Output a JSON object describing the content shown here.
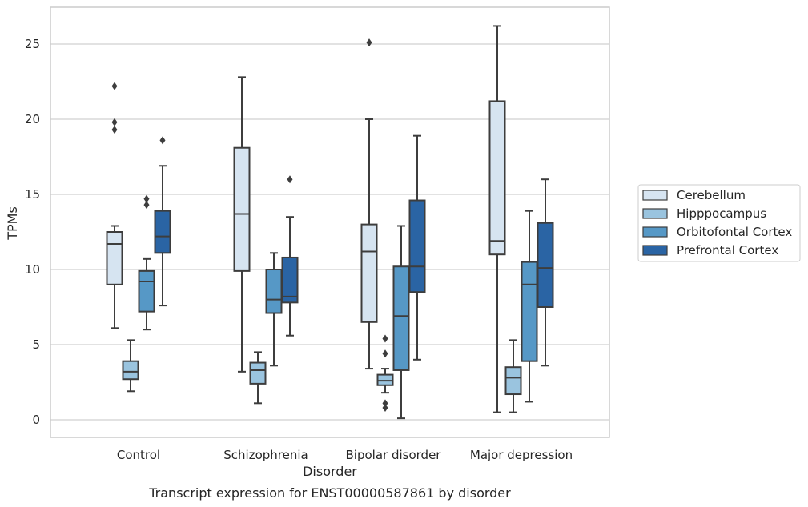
{
  "chart_data": {
    "type": "box",
    "title": "",
    "caption": "Transcript expression for ENST00000587861 by disorder",
    "xlabel": "Disorder",
    "ylabel": "TPMs",
    "ylim": [
      -1.2,
      27.4
    ],
    "yticks": [
      0,
      5,
      10,
      15,
      20,
      25
    ],
    "grid": true,
    "legend_position": "right",
    "categories": [
      "Control",
      "Schizophrenia",
      "Bipolar disorder",
      "Major depression"
    ],
    "series": [
      {
        "name": "Cerebellum",
        "color": "#d6e4f1",
        "boxes": [
          {
            "whisker_low": 6.1,
            "q1": 9.0,
            "median": 11.7,
            "q3": 12.5,
            "whisker_high": 12.9,
            "outliers": [
              22.2,
              19.8,
              19.3
            ]
          },
          {
            "whisker_low": 3.2,
            "q1": 9.9,
            "median": 13.7,
            "q3": 18.1,
            "whisker_high": 22.8,
            "outliers": []
          },
          {
            "whisker_low": 3.4,
            "q1": 6.5,
            "median": 11.2,
            "q3": 13.0,
            "whisker_high": 20.0,
            "outliers": [
              25.1
            ]
          },
          {
            "whisker_low": 0.5,
            "q1": 11.0,
            "median": 11.9,
            "q3": 21.2,
            "whisker_high": 26.2,
            "outliers": []
          }
        ]
      },
      {
        "name": "Hipppocampus",
        "color": "#9ac4df",
        "boxes": [
          {
            "whisker_low": 1.9,
            "q1": 2.7,
            "median": 3.2,
            "q3": 3.9,
            "whisker_high": 5.3,
            "outliers": []
          },
          {
            "whisker_low": 1.1,
            "q1": 2.4,
            "median": 3.3,
            "q3": 3.8,
            "whisker_high": 4.5,
            "outliers": []
          },
          {
            "whisker_low": 1.8,
            "q1": 2.3,
            "median": 2.6,
            "q3": 3.0,
            "whisker_high": 3.4,
            "outliers": [
              5.4,
              4.4,
              1.1,
              0.8
            ]
          },
          {
            "whisker_low": 0.5,
            "q1": 1.7,
            "median": 2.8,
            "q3": 3.5,
            "whisker_high": 5.3,
            "outliers": []
          }
        ]
      },
      {
        "name": "Orbitofontal Cortex",
        "color": "#5698c6",
        "boxes": [
          {
            "whisker_low": 6.0,
            "q1": 7.2,
            "median": 9.2,
            "q3": 9.9,
            "whisker_high": 10.7,
            "outliers": [
              14.7,
              14.3
            ]
          },
          {
            "whisker_low": 3.6,
            "q1": 7.1,
            "median": 8.0,
            "q3": 10.0,
            "whisker_high": 11.1,
            "outliers": []
          },
          {
            "whisker_low": 0.1,
            "q1": 3.3,
            "median": 6.9,
            "q3": 10.2,
            "whisker_high": 12.9,
            "outliers": []
          },
          {
            "whisker_low": 1.2,
            "q1": 3.9,
            "median": 9.0,
            "q3": 10.5,
            "whisker_high": 13.9,
            "outliers": []
          }
        ]
      },
      {
        "name": "Prefrontal Cortex",
        "color": "#2a64a4",
        "boxes": [
          {
            "whisker_low": 7.6,
            "q1": 11.1,
            "median": 12.2,
            "q3": 13.9,
            "whisker_high": 16.9,
            "outliers": [
              18.6
            ]
          },
          {
            "whisker_low": 5.6,
            "q1": 7.8,
            "median": 8.2,
            "q3": 10.8,
            "whisker_high": 13.5,
            "outliers": [
              16.0
            ]
          },
          {
            "whisker_low": 4.0,
            "q1": 8.5,
            "median": 10.2,
            "q3": 14.6,
            "whisker_high": 18.9,
            "outliers": []
          },
          {
            "whisker_low": 3.6,
            "q1": 7.5,
            "median": 10.1,
            "q3": 13.1,
            "whisker_high": 16.0,
            "outliers": []
          }
        ]
      }
    ]
  }
}
